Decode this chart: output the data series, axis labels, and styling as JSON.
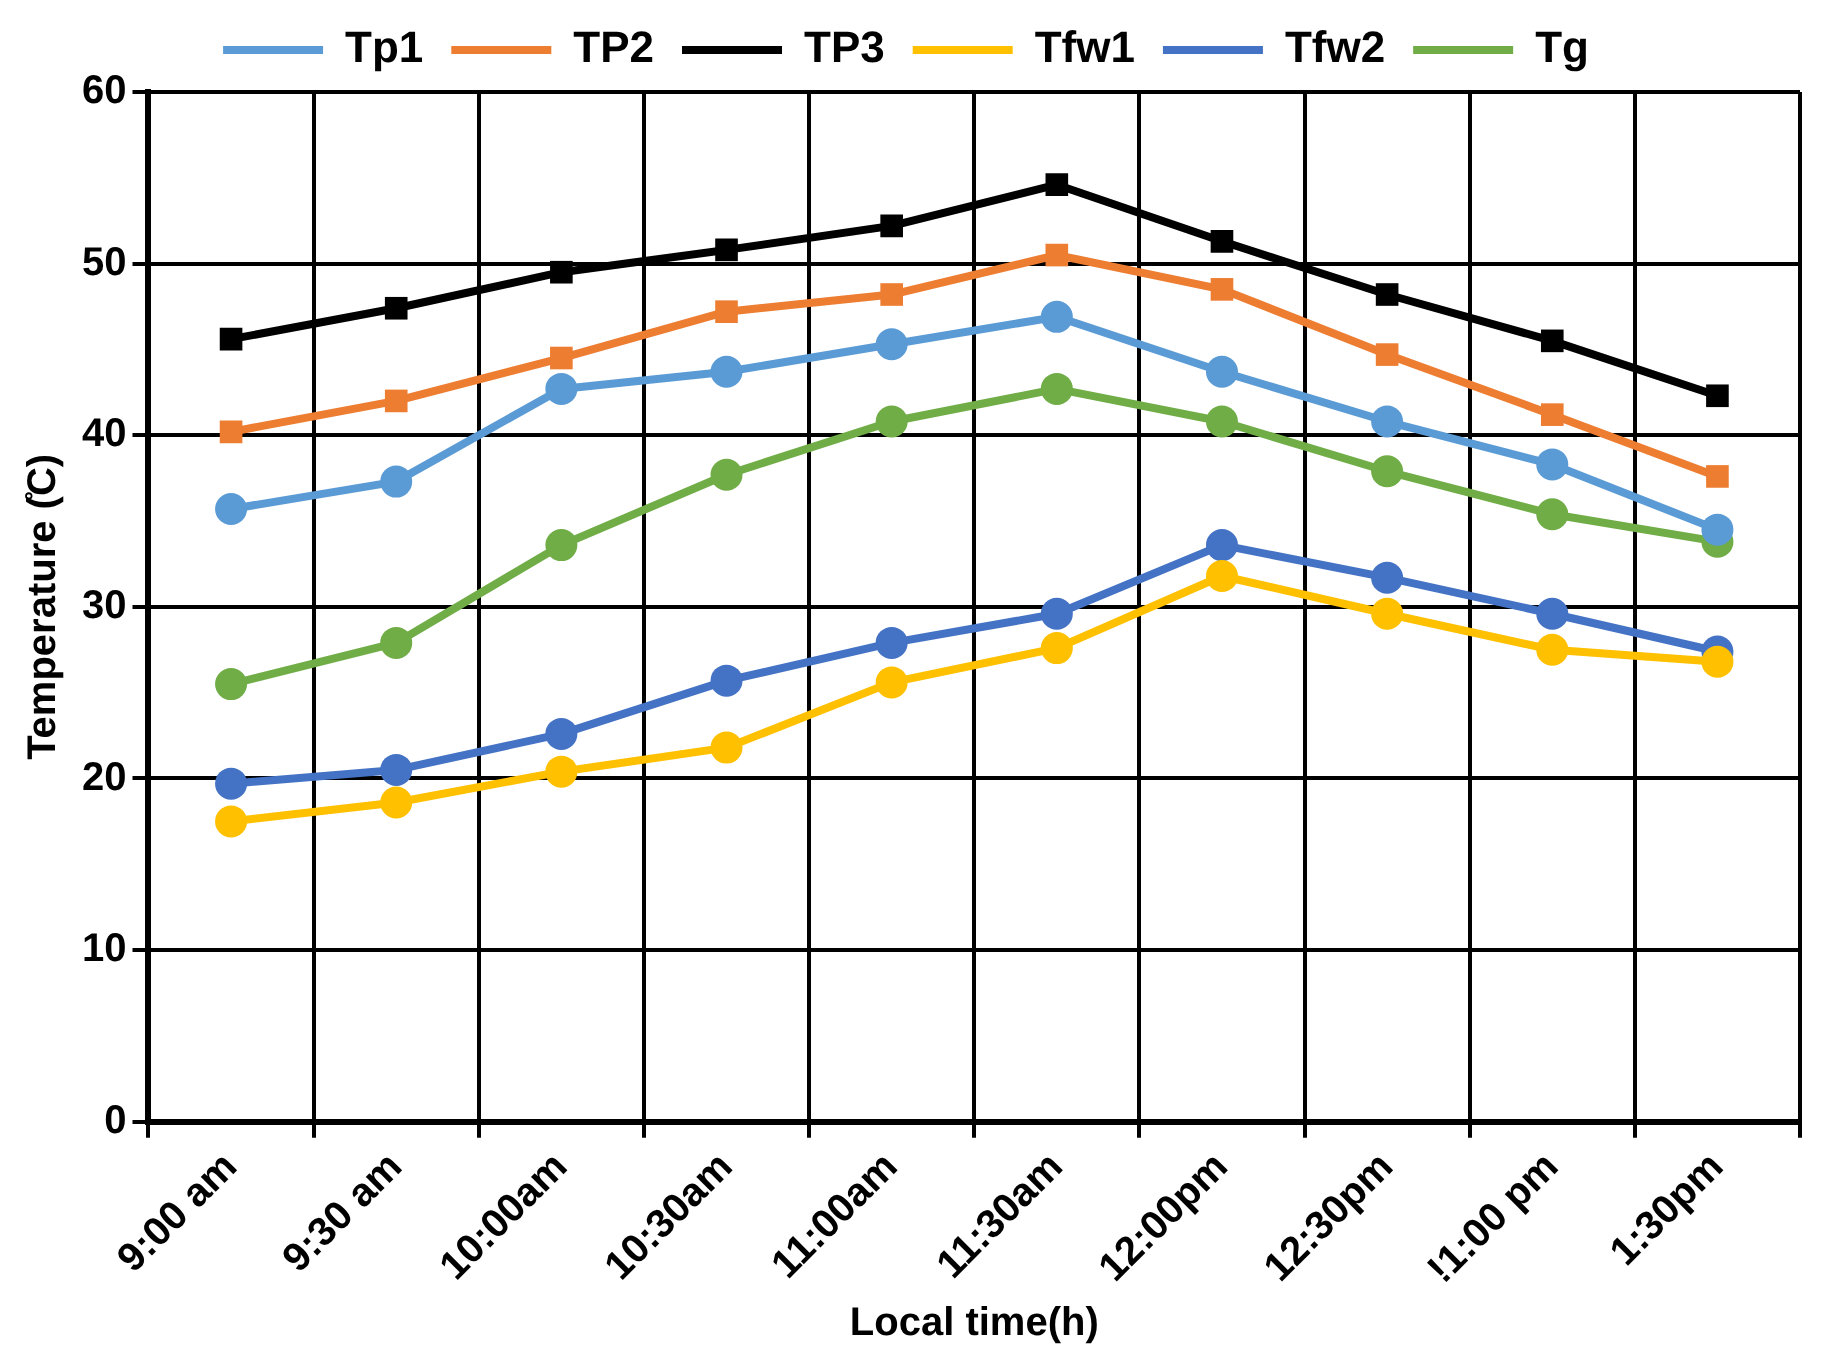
{
  "chart_data": {
    "type": "line",
    "xlabel": "Local time(h)",
    "ylabel": "Temperature (̊C)",
    "categories": [
      "9:00 am",
      "9:30 am",
      "10:00am",
      "10:30am",
      "11:00am",
      "11:30am",
      "12:00pm",
      "12:30pm",
      "!1:00 pm",
      "1:30pm"
    ],
    "ylim": [
      0,
      60
    ],
    "yticks": [
      0,
      10,
      20,
      30,
      40,
      50,
      60
    ],
    "grid": true,
    "legend": "top",
    "line_style": "solid",
    "series": [
      {
        "name": "Tp1",
        "color": "#5b9bd5",
        "marker": "circle",
        "values": [
          35.7,
          37.3,
          42.7,
          43.7,
          45.3,
          46.9,
          43.7,
          40.8,
          38.3,
          34.5
        ]
      },
      {
        "name": "TP2",
        "color": "#ed7d31",
        "marker": "square",
        "values": [
          40.2,
          42.0,
          44.5,
          47.2,
          48.2,
          50.5,
          48.5,
          44.7,
          41.2,
          37.6
        ]
      },
      {
        "name": "TP3",
        "color": "#000000",
        "marker": "square",
        "values": [
          45.6,
          47.4,
          49.5,
          50.8,
          52.2,
          54.6,
          51.3,
          48.2,
          45.5,
          42.3
        ]
      },
      {
        "name": "Tfw1",
        "color": "#ffc000",
        "marker": "circle",
        "values": [
          17.5,
          18.6,
          20.4,
          21.8,
          25.6,
          27.6,
          31.8,
          29.6,
          27.5,
          26.8
        ]
      },
      {
        "name": "Tfw2",
        "color": "#4472c4",
        "marker": "circle",
        "values": [
          19.7,
          20.5,
          22.6,
          25.7,
          27.9,
          29.6,
          33.6,
          31.7,
          29.6,
          27.4
        ]
      },
      {
        "name": "Tg",
        "color": "#70ad47",
        "marker": "circle",
        "values": [
          25.5,
          27.9,
          33.6,
          37.7,
          40.8,
          42.7,
          40.8,
          37.9,
          35.4,
          33.8
        ]
      }
    ]
  }
}
